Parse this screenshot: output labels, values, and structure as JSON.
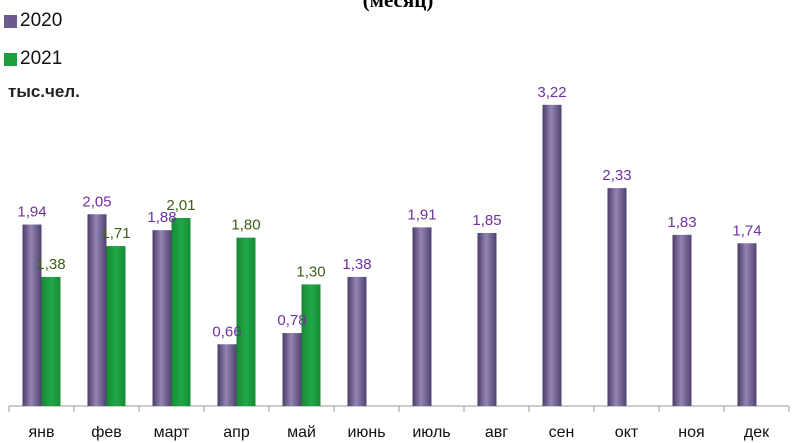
{
  "chart_data": {
    "type": "bar",
    "title": "(месяц)",
    "ylabel": "тыс.чел.",
    "categories": [
      "янв",
      "фев",
      "март",
      "апр",
      "май",
      "июнь",
      "июль",
      "авг",
      "сен",
      "окт",
      "ноя",
      "дек"
    ],
    "series": [
      {
        "name": "2020",
        "color": "#6c5a8c",
        "label_color": "#7030a0",
        "values": [
          1.94,
          2.05,
          1.88,
          0.66,
          0.78,
          1.38,
          1.91,
          1.85,
          3.22,
          2.33,
          1.83,
          1.74
        ],
        "labels": [
          "1,94",
          "2,05",
          "1,88",
          "0,66",
          "0,78",
          "1,38",
          "1,91",
          "1,85",
          "3,22",
          "2,33",
          "1,83",
          "1,74"
        ]
      },
      {
        "name": "2021",
        "color": "#1f9e3f",
        "label_color": "#3b5f14",
        "values": [
          1.38,
          1.71,
          2.01,
          1.8,
          1.3,
          null,
          null,
          null,
          null,
          null,
          null,
          null
        ],
        "labels": [
          "1,38",
          "1,71",
          "2,01",
          "1,80",
          "1,30",
          null,
          null,
          null,
          null,
          null,
          null,
          null
        ]
      }
    ],
    "ylim": [
      0,
      3.4
    ],
    "grid": false,
    "legend": "top-left"
  }
}
